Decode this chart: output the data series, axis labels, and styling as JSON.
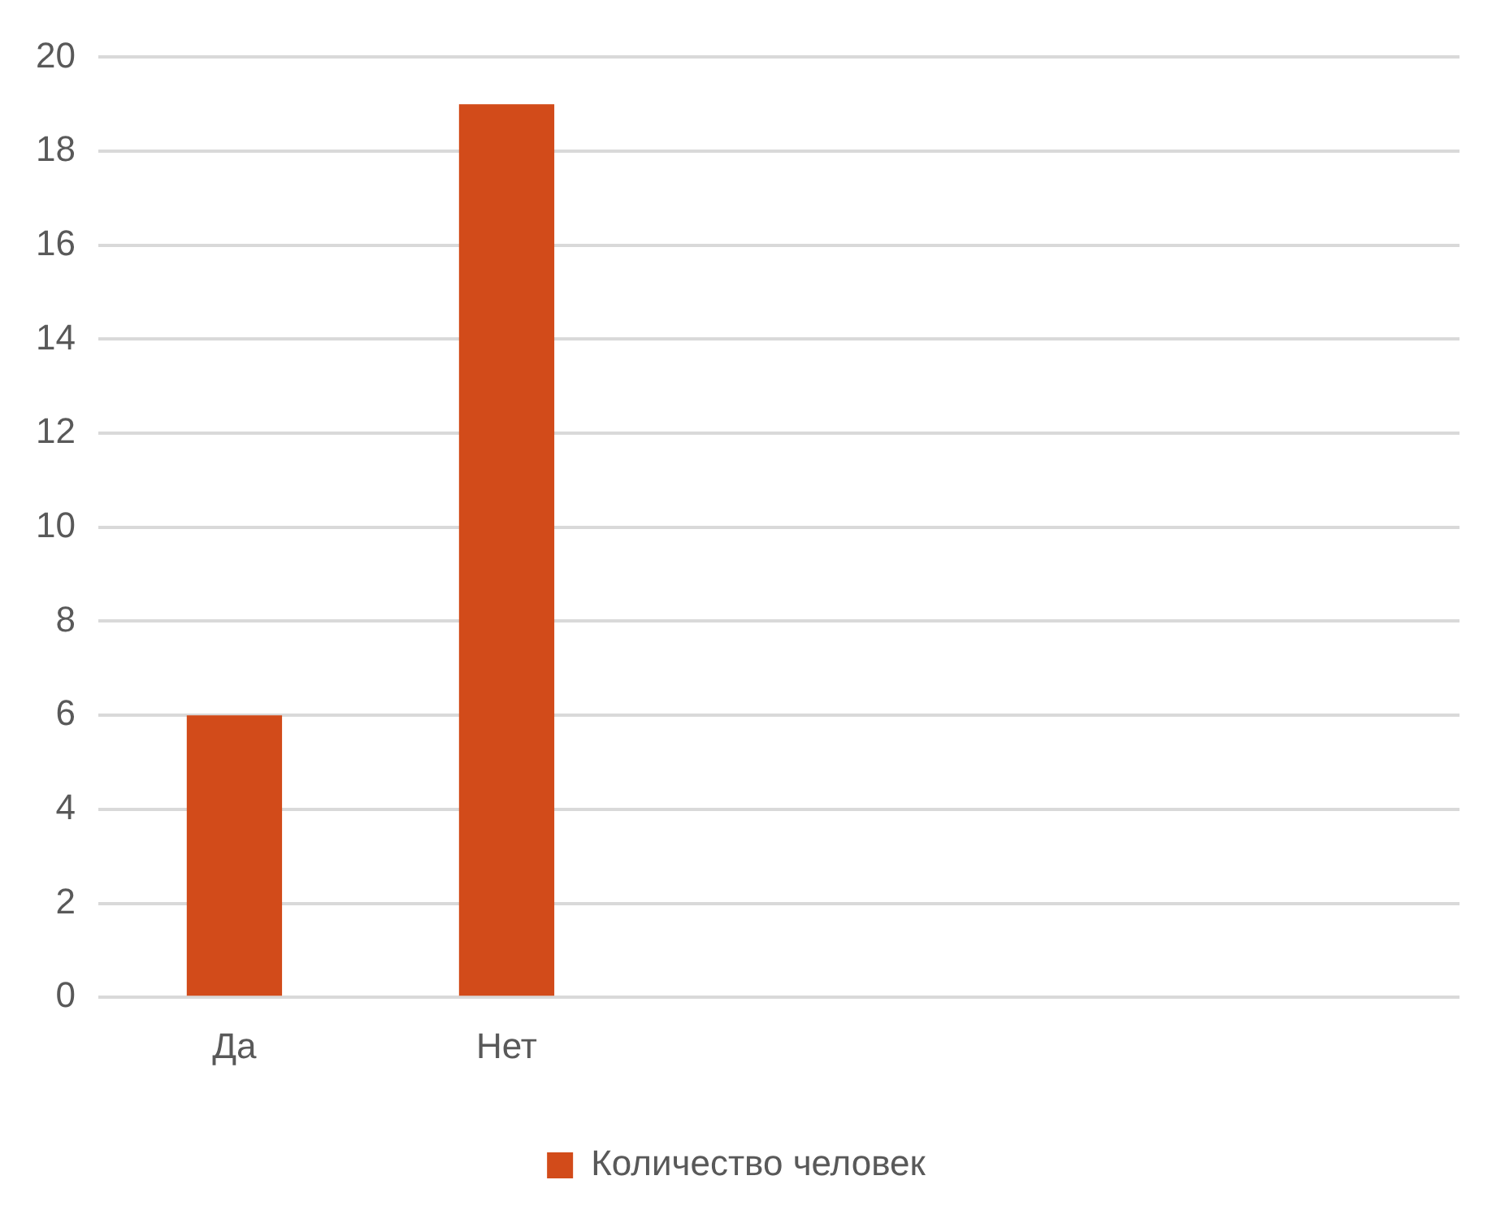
{
  "chart_data": {
    "type": "bar",
    "categories": [
      "Да",
      "Нет",
      null,
      null,
      null
    ],
    "series": [
      {
        "name": "Количество человек",
        "color": "#d24b1a",
        "values": [
          6,
          19,
          null,
          null,
          null
        ]
      }
    ],
    "ylim": [
      0,
      20
    ],
    "yticks": [
      0,
      2,
      4,
      6,
      8,
      10,
      12,
      14,
      16,
      18,
      20
    ],
    "grid": "y",
    "legend": "bottom"
  }
}
